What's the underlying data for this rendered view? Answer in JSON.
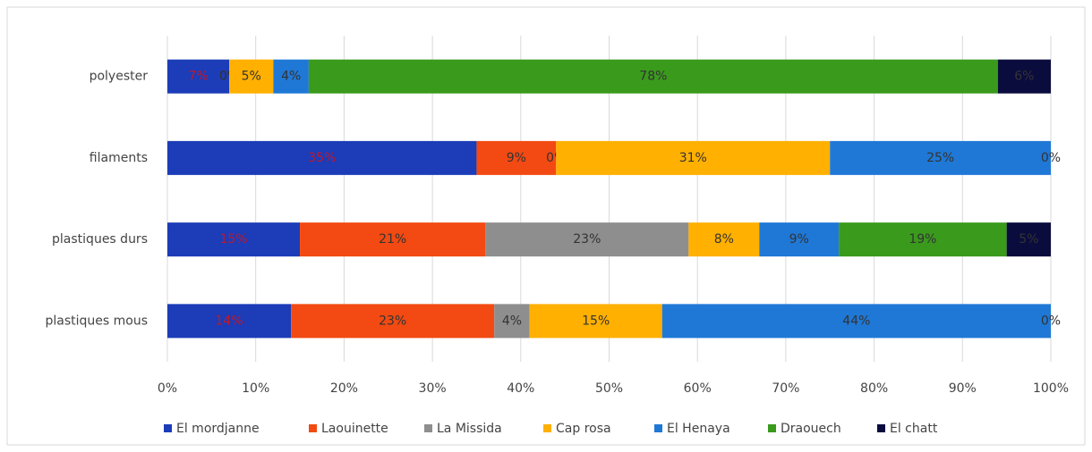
{
  "chart_data": {
    "type": "stacked_bar_horizontal",
    "categories": [
      "polyester",
      "filaments",
      "plastiques durs",
      "plastiques mous"
    ],
    "xlim": [
      0,
      100
    ],
    "xticks": [
      {
        "value": 0,
        "label": "0%"
      },
      {
        "value": 10,
        "label": "10%"
      },
      {
        "value": 20,
        "label": "20%"
      },
      {
        "value": 30,
        "label": "30%"
      },
      {
        "value": 40,
        "label": "40%"
      },
      {
        "value": 50,
        "label": "50%"
      },
      {
        "value": 60,
        "label": "60%"
      },
      {
        "value": 70,
        "label": "70%"
      },
      {
        "value": 80,
        "label": "80%"
      },
      {
        "value": 90,
        "label": "90%"
      },
      {
        "value": 100,
        "label": "100%"
      }
    ],
    "grid": true,
    "legend": "bottom",
    "series": [
      {
        "name": "El mordjanne",
        "color": "#1c3cb8",
        "label_color": "#c0182a",
        "values": [
          7,
          35,
          15,
          14
        ],
        "value_labels": [
          "7%",
          "35%",
          "15%",
          "14%"
        ]
      },
      {
        "name": "Laouinette",
        "color": "#f24a12",
        "label_color": "#333333",
        "values": [
          0,
          9,
          21,
          23
        ],
        "value_labels": [
          "0%",
          "9%",
          "21%",
          "23%"
        ]
      },
      {
        "name": "La Missida",
        "color": "#8e8e8e",
        "label_color": "#333333",
        "values": [
          0,
          0,
          23,
          4
        ],
        "value_labels": [
          "0%",
          "0%",
          "23%",
          "4%"
        ]
      },
      {
        "name": "Cap rosa",
        "color": "#ffb000",
        "label_color": "#333333",
        "values": [
          5,
          31,
          8,
          15
        ],
        "value_labels": [
          "5%",
          "31%",
          "8%",
          "15%"
        ]
      },
      {
        "name": "El Henaya",
        "color": "#1f78d6",
        "label_color": "#333333",
        "values": [
          4,
          25,
          9,
          44
        ],
        "value_labels": [
          "4%",
          "25%",
          "9%",
          "44%"
        ]
      },
      {
        "name": "Draouech",
        "color": "#3a9a1c",
        "label_color": "#333333",
        "values": [
          78,
          0,
          19,
          0
        ],
        "value_labels": [
          "78%",
          "0%",
          "19%",
          "0%"
        ]
      },
      {
        "name": "El chatt",
        "color": "#0b0c3e",
        "label_color": "#333333",
        "values": [
          6,
          0,
          5,
          0
        ],
        "value_labels": [
          "6%",
          null,
          "5%",
          null
        ]
      }
    ]
  }
}
